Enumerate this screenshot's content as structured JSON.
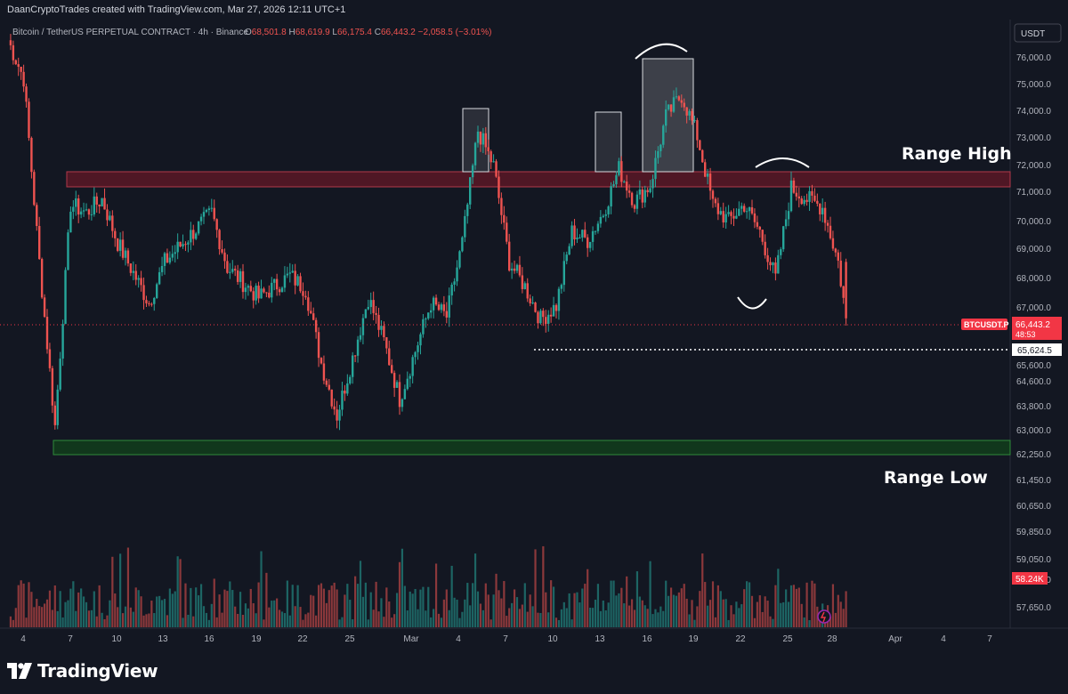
{
  "header": {
    "attribution": "DaanCryptoTrades created with TradingView.com, Mar 27, 2026 12:11 UTC+1",
    "symbol_line": "Bitcoin / TetherUS PERPETUAL CONTRACT · 4h · Binance",
    "ohlc": [
      {
        "key": "O",
        "value": "68,501.8"
      },
      {
        "key": "H",
        "value": "68,619.9"
      },
      {
        "key": "L",
        "value": "66,175.4"
      },
      {
        "key": "C",
        "value": "66,443.2"
      }
    ],
    "change": "−2,058.5 (−3.01%)",
    "currency_button": "USDT"
  },
  "price_axis": {
    "ticks": [
      "76,000.0",
      "75,000.0",
      "74,000.0",
      "73,000.0",
      "72,000.0",
      "71,000.0",
      "70,000.0",
      "69,000.0",
      "68,000.0",
      "67,000.0",
      "65,600.0",
      "64,600.0",
      "63,800.0",
      "63,000.0",
      "62,250.0",
      "61,450.0",
      "60,650.0",
      "59,850.0",
      "59,050.0",
      "58,250.0",
      "57,650.0"
    ],
    "symbol_tag": "BTCUSDT.P",
    "last_price": "66,443.2",
    "countdown": "48:53",
    "marked_low": "65,624.5",
    "volume_tag": "58.24K"
  },
  "time_axis": {
    "labels": [
      "4",
      "7",
      "10",
      "13",
      "16",
      "19",
      "22",
      "25",
      "Mar",
      "4",
      "7",
      "10",
      "13",
      "16",
      "19",
      "22",
      "25",
      "28",
      "Apr",
      "4",
      "7"
    ]
  },
  "annotations": {
    "range_high": "Range High",
    "range_low": "Range Low"
  },
  "colors": {
    "background": "#131722",
    "up": "#26a69a",
    "down": "#ef5350",
    "range_high_zone": "#6d1a2a",
    "range_low_zone": "#1b5e20",
    "last_price_tag": "#f23645"
  },
  "chart_data": {
    "type": "candlestick",
    "symbol": "BTCUSDT.P",
    "interval": "4h",
    "exchange": "Binance",
    "last_ohlc": {
      "open": 68501.8,
      "high": 68619.9,
      "low": 66175.4,
      "close": 66443.2
    },
    "range_high_zone": [
      71200,
      71700
    ],
    "range_low_zone": [
      62250,
      62700
    ],
    "price_path": [
      {
        "x": "Feb 3",
        "y": 76600
      },
      {
        "x": "Feb 4",
        "y": 75200
      },
      {
        "x": "Feb 5",
        "y": 68500
      },
      {
        "x": "Feb 6",
        "y": 62500
      },
      {
        "x": "Feb 7",
        "y": 70600
      },
      {
        "x": "Feb 8",
        "y": 70300
      },
      {
        "x": "Feb 9",
        "y": 70800
      },
      {
        "x": "Feb 10",
        "y": 69200
      },
      {
        "x": "Feb 12",
        "y": 67000
      },
      {
        "x": "Feb 13",
        "y": 68500
      },
      {
        "x": "Feb 14",
        "y": 69100
      },
      {
        "x": "Feb 16",
        "y": 70300
      },
      {
        "x": "Feb 17",
        "y": 68300
      },
      {
        "x": "Feb 19",
        "y": 67200
      },
      {
        "x": "Feb 20",
        "y": 67600
      },
      {
        "x": "Feb 21",
        "y": 68000
      },
      {
        "x": "Feb 22",
        "y": 67500
      },
      {
        "x": "Feb 23",
        "y": 64800
      },
      {
        "x": "Feb 24",
        "y": 62900
      },
      {
        "x": "Feb 25",
        "y": 65000
      },
      {
        "x": "Feb 26",
        "y": 67200
      },
      {
        "x": "Feb 27",
        "y": 65600
      },
      {
        "x": "Feb 28",
        "y": 63500
      },
      {
        "x": "Mar 1",
        "y": 67000
      },
      {
        "x": "Mar 2",
        "y": 66500
      },
      {
        "x": "Mar 3",
        "y": 69200
      },
      {
        "x": "Mar 4",
        "y": 73300
      },
      {
        "x": "Mar 5",
        "y": 72000
      },
      {
        "x": "Mar 6",
        "y": 68500
      },
      {
        "x": "Mar 7",
        "y": 67600
      },
      {
        "x": "Mar 8",
        "y": 66400
      },
      {
        "x": "Mar 9",
        "y": 66900
      },
      {
        "x": "Mar 10",
        "y": 69600
      },
      {
        "x": "Mar 11",
        "y": 69300
      },
      {
        "x": "Mar 12",
        "y": 70300
      },
      {
        "x": "Mar 13",
        "y": 71900
      },
      {
        "x": "Mar 14",
        "y": 70700
      },
      {
        "x": "Mar 15",
        "y": 71300
      },
      {
        "x": "Mar 16",
        "y": 73800
      },
      {
        "x": "Mar 17",
        "y": 74600
      },
      {
        "x": "Mar 18",
        "y": 73100
      },
      {
        "x": "Mar 19",
        "y": 70600
      },
      {
        "x": "Mar 20",
        "y": 70000
      },
      {
        "x": "Mar 21",
        "y": 70600
      },
      {
        "x": "Mar 22",
        "y": 69600
      },
      {
        "x": "Mar 23",
        "y": 67900
      },
      {
        "x": "Mar 24",
        "y": 71200
      },
      {
        "x": "Mar 25",
        "y": 70800
      },
      {
        "x": "Mar 26",
        "y": 70500
      },
      {
        "x": "Mar 27",
        "y": 68500
      },
      {
        "x": "Mar 27",
        "y": 66443.2
      }
    ],
    "volume_last": "58.24K",
    "ylim": [
      57300,
      76700
    ]
  }
}
